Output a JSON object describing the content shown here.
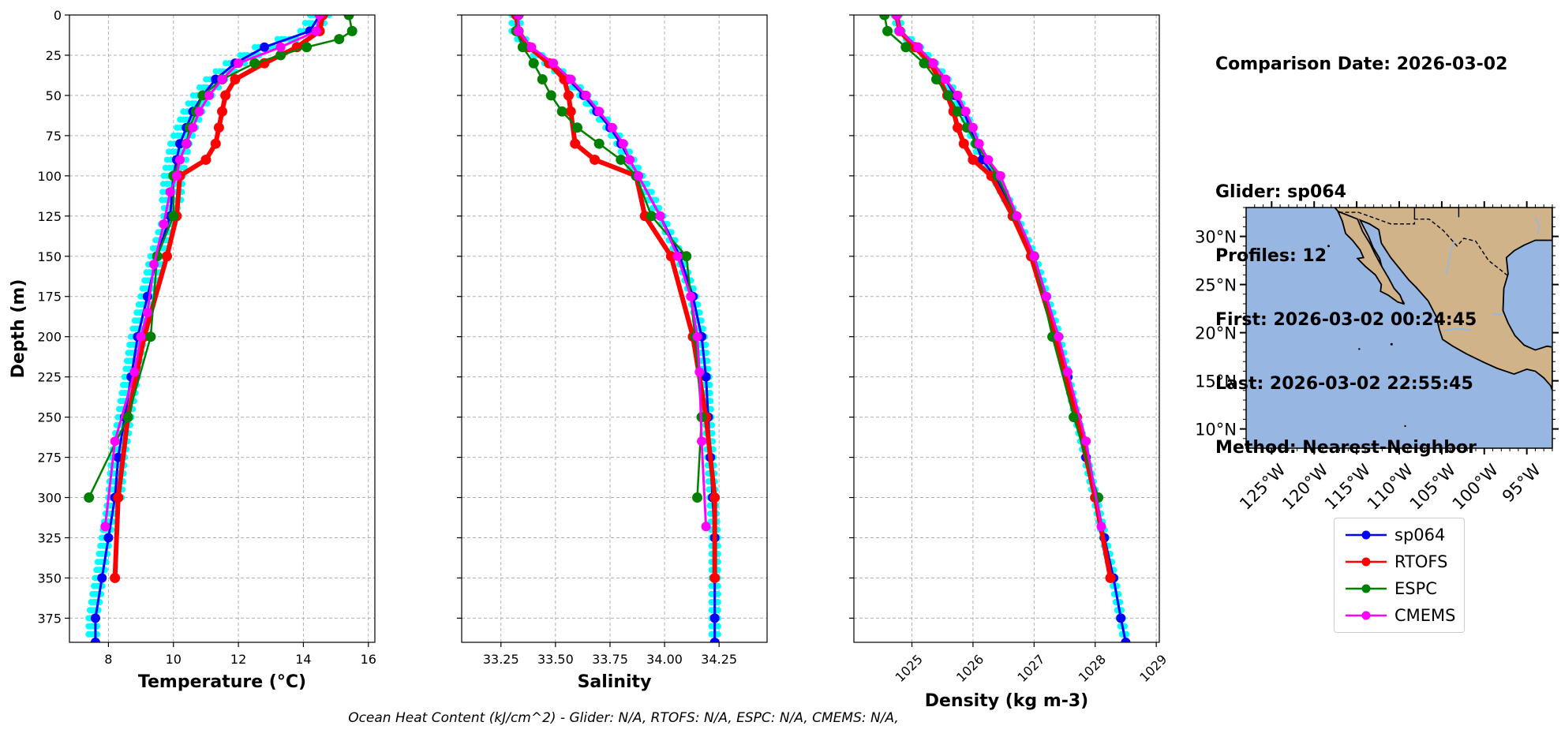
{
  "info": {
    "comparison_date": "Comparison Date: 2026-03-02",
    "glider": "Glider: sp064",
    "profiles": "Profiles: 12",
    "first": "First: 2026-03-02 00:24:45",
    "last": "Last: 2026-03-02 22:55:45",
    "method": "Method: Nearest-Neighbor"
  },
  "footer": "Ocean Heat Content (kJ/cm^2) - Glider: N/A,  RTOFS: N/A,  ESPC: N/A,  CMEMS: N/A,",
  "colors": {
    "glider": "#0000ff",
    "rtofs": "#ff0000",
    "espc": "#008000",
    "cmems": "#ff00ff",
    "glider_profiles": "#00ffff",
    "ocean": "#98b6e2",
    "land": "#d1b38a"
  },
  "legend": [
    {
      "label": "sp064",
      "color": "#0000ff"
    },
    {
      "label": "RTOFS",
      "color": "#ff0000"
    },
    {
      "label": "ESPC",
      "color": "#008000"
    },
    {
      "label": "CMEMS",
      "color": "#ff00ff"
    }
  ],
  "map": {
    "lat_ticks": [
      "30°N",
      "25°N",
      "20°N",
      "15°N",
      "10°N"
    ],
    "lon_ticks": [
      "125°W",
      "120°W",
      "115°W",
      "110°W",
      "105°W",
      "100°W",
      "95°W"
    ]
  },
  "chart_data": [
    {
      "type": "line",
      "xlabel": "Temperature (°C)",
      "ylabel": "Depth (m)",
      "xlim": [
        6.8,
        16.2
      ],
      "ylim": [
        390,
        0
      ],
      "xticks": [
        "8",
        "10",
        "12",
        "14",
        "16"
      ],
      "yticks": [
        "0",
        "25",
        "50",
        "75",
        "100",
        "125",
        "150",
        "175",
        "200",
        "225",
        "250",
        "275",
        "300",
        "325",
        "350",
        "375"
      ],
      "grid": true,
      "series": [
        {
          "name": "sp064",
          "depth": [
            0,
            10,
            20,
            30,
            40,
            50,
            60,
            70,
            80,
            90,
            100,
            125,
            150,
            175,
            200,
            225,
            250,
            275,
            300,
            325,
            350,
            375,
            390
          ],
          "values": [
            14.5,
            14.2,
            12.8,
            11.9,
            11.3,
            10.9,
            10.6,
            10.4,
            10.2,
            10.1,
            10.0,
            9.9,
            9.5,
            9.2,
            8.9,
            8.7,
            8.5,
            8.3,
            8.2,
            8.0,
            7.8,
            7.6,
            7.6
          ]
        },
        {
          "name": "RTOFS",
          "depth": [
            0,
            10,
            20,
            30,
            40,
            50,
            60,
            70,
            80,
            90,
            100,
            125,
            150,
            200,
            250,
            300,
            350
          ],
          "values": [
            14.6,
            14.5,
            13.8,
            12.8,
            11.9,
            11.6,
            11.5,
            11.4,
            11.3,
            11.0,
            10.2,
            10.1,
            9.8,
            9.1,
            8.6,
            8.3,
            8.2
          ]
        },
        {
          "name": "ESPC",
          "depth": [
            0,
            10,
            15,
            20,
            25,
            30,
            40,
            50,
            60,
            70,
            80,
            100,
            125,
            150,
            200,
            250,
            300
          ],
          "values": [
            15.4,
            15.5,
            15.1,
            14.1,
            13.3,
            12.5,
            11.5,
            10.9,
            10.7,
            10.5,
            10.4,
            10.0,
            10.0,
            9.5,
            9.3,
            8.6,
            7.4
          ]
        },
        {
          "name": "CMEMS",
          "depth": [
            0,
            10,
            20,
            30,
            40,
            50,
            60,
            70,
            80,
            90,
            100,
            110,
            130,
            155,
            185,
            200,
            222,
            265,
            318
          ],
          "values": [
            14.5,
            14.4,
            13.3,
            12.0,
            11.5,
            11.1,
            10.8,
            10.6,
            10.4,
            10.2,
            10.1,
            9.9,
            9.7,
            9.4,
            9.2,
            9.0,
            8.8,
            8.2,
            7.9
          ]
        }
      ]
    },
    {
      "type": "line",
      "xlabel": "Salinity",
      "xlim": [
        33.07,
        34.47
      ],
      "ylim": [
        390,
        0
      ],
      "xticks": [
        "33.25",
        "33.50",
        "33.75",
        "34.00",
        "34.25"
      ],
      "grid": true,
      "series": [
        {
          "name": "sp064",
          "depth": [
            0,
            10,
            20,
            30,
            40,
            50,
            60,
            70,
            80,
            90,
            100,
            125,
            150,
            175,
            200,
            225,
            250,
            275,
            300,
            325,
            350,
            375,
            390
          ],
          "values": [
            33.32,
            33.32,
            33.37,
            33.47,
            33.56,
            33.63,
            33.69,
            33.75,
            33.8,
            33.84,
            33.88,
            33.98,
            34.07,
            34.13,
            34.17,
            34.19,
            34.2,
            34.21,
            34.22,
            34.23,
            34.23,
            34.23,
            34.23
          ]
        },
        {
          "name": "RTOFS",
          "depth": [
            0,
            10,
            20,
            30,
            40,
            50,
            60,
            80,
            90,
            100,
            125,
            150,
            200,
            250,
            300,
            350
          ],
          "values": [
            33.32,
            33.33,
            33.38,
            33.47,
            33.54,
            33.56,
            33.57,
            33.59,
            33.68,
            33.87,
            33.91,
            34.03,
            34.13,
            34.19,
            34.23,
            34.23
          ]
        },
        {
          "name": "ESPC",
          "depth": [
            0,
            10,
            20,
            30,
            40,
            50,
            60,
            70,
            80,
            90,
            100,
            125,
            150,
            200,
            250,
            300
          ],
          "values": [
            33.33,
            33.32,
            33.35,
            33.4,
            33.44,
            33.48,
            33.53,
            33.6,
            33.7,
            33.8,
            33.87,
            33.94,
            34.1,
            34.14,
            34.17,
            34.15
          ]
        },
        {
          "name": "CMEMS",
          "depth": [
            0,
            10,
            20,
            30,
            40,
            50,
            60,
            70,
            80,
            90,
            100,
            125,
            150,
            175,
            200,
            222,
            265,
            318
          ],
          "values": [
            33.33,
            33.33,
            33.39,
            33.49,
            33.57,
            33.64,
            33.7,
            33.76,
            33.81,
            33.84,
            33.88,
            33.98,
            34.06,
            34.12,
            34.15,
            34.16,
            34.17,
            34.19
          ]
        }
      ]
    },
    {
      "type": "line",
      "xlabel": "Density (kg m-3)",
      "xlim": [
        1024.05,
        1029.05
      ],
      "ylim": [
        390,
        0
      ],
      "xticks": [
        "1025",
        "1026",
        "1027",
        "1028",
        "1029"
      ],
      "grid": true,
      "series": [
        {
          "name": "sp064",
          "depth": [
            0,
            10,
            20,
            30,
            40,
            50,
            60,
            70,
            80,
            90,
            100,
            125,
            150,
            175,
            200,
            225,
            250,
            275,
            300,
            325,
            350,
            375,
            390
          ],
          "values": [
            1024.75,
            1024.8,
            1025.1,
            1025.35,
            1025.55,
            1025.7,
            1025.85,
            1025.95,
            1026.05,
            1026.15,
            1026.35,
            1026.7,
            1027.0,
            1027.2,
            1027.4,
            1027.55,
            1027.7,
            1027.85,
            1028.0,
            1028.15,
            1028.3,
            1028.42,
            1028.5
          ]
        },
        {
          "name": "RTOFS",
          "depth": [
            0,
            10,
            20,
            30,
            40,
            50,
            60,
            70,
            80,
            90,
            100,
            125,
            150,
            200,
            250,
            300,
            350
          ],
          "values": [
            1024.75,
            1024.8,
            1025.05,
            1025.3,
            1025.45,
            1025.58,
            1025.68,
            1025.75,
            1025.85,
            1026.0,
            1026.3,
            1026.65,
            1026.95,
            1027.35,
            1027.7,
            1028.0,
            1028.25
          ]
        },
        {
          "name": "ESPC",
          "depth": [
            0,
            10,
            20,
            30,
            40,
            50,
            60,
            70,
            80,
            100,
            125,
            150,
            200,
            250,
            300
          ],
          "values": [
            1024.55,
            1024.6,
            1024.9,
            1025.2,
            1025.4,
            1025.6,
            1025.75,
            1025.9,
            1026.05,
            1026.4,
            1026.7,
            1027.0,
            1027.3,
            1027.65,
            1028.05
          ]
        },
        {
          "name": "CMEMS",
          "depth": [
            0,
            10,
            20,
            30,
            40,
            50,
            60,
            70,
            80,
            90,
            100,
            125,
            150,
            175,
            200,
            222,
            265,
            318
          ],
          "values": [
            1024.75,
            1024.8,
            1025.1,
            1025.35,
            1025.55,
            1025.75,
            1025.88,
            1026.0,
            1026.1,
            1026.25,
            1026.45,
            1026.72,
            1027.0,
            1027.2,
            1027.4,
            1027.55,
            1027.85,
            1028.1
          ]
        }
      ]
    }
  ]
}
